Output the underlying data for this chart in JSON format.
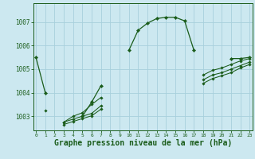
{
  "background_color": "#cce8f0",
  "grid_color": "#a8d0dc",
  "line_color": "#1a5c1a",
  "marker_color": "#1a5c1a",
  "xlabel": "Graphe pression niveau de la mer (hPa)",
  "xlabel_fontsize": 7,
  "xticks": [
    0,
    1,
    2,
    3,
    4,
    5,
    6,
    7,
    8,
    9,
    10,
    11,
    12,
    13,
    14,
    15,
    16,
    17,
    18,
    19,
    20,
    21,
    22,
    23
  ],
  "yticks": [
    1003,
    1004,
    1005,
    1006,
    1007
  ],
  "ylim": [
    1002.4,
    1007.8
  ],
  "xlim": [
    -0.3,
    23.3
  ],
  "series": [
    [
      1005.5,
      1004.0,
      null,
      null,
      null,
      1003.0,
      1003.6,
      1004.3,
      null,
      null,
      1005.8,
      1006.65,
      1006.95,
      1007.15,
      1007.2,
      1007.2,
      1007.05,
      1005.8,
      null,
      null,
      null,
      1005.45,
      1005.45,
      1005.5
    ],
    [
      null,
      1003.25,
      null,
      1002.75,
      1003.0,
      1003.15,
      1003.5,
      1003.8,
      null,
      null,
      null,
      null,
      null,
      null,
      null,
      null,
      null,
      null,
      1004.75,
      1004.95,
      1005.05,
      1005.2,
      1005.35,
      1005.45
    ],
    [
      null,
      null,
      null,
      1002.75,
      1002.88,
      1003.0,
      1003.12,
      1003.45,
      null,
      null,
      null,
      null,
      null,
      null,
      null,
      null,
      null,
      null,
      1004.55,
      1004.75,
      1004.85,
      1005.0,
      1005.15,
      1005.3
    ],
    [
      null,
      null,
      null,
      1002.65,
      1002.78,
      1002.9,
      1003.02,
      1003.3,
      null,
      null,
      null,
      null,
      null,
      null,
      null,
      null,
      null,
      null,
      1004.4,
      1004.6,
      1004.72,
      1004.85,
      1005.05,
      1005.2
    ]
  ]
}
